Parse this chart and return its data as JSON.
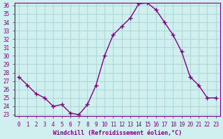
{
  "x": [
    0,
    1,
    2,
    3,
    4,
    5,
    6,
    7,
    8,
    9,
    10,
    11,
    12,
    13,
    14,
    15,
    16,
    17,
    18,
    19,
    20,
    21,
    22,
    23
  ],
  "y": [
    27.5,
    26.5,
    25.5,
    25.0,
    24.0,
    24.2,
    23.2,
    23.0,
    24.2,
    26.5,
    30.0,
    32.5,
    33.5,
    34.5,
    36.2,
    36.3,
    35.5,
    34.0,
    32.5,
    30.5,
    27.5,
    26.5,
    25.0,
    25.0
  ],
  "line_color": "#800080",
  "bg_color": "#d0f0f0",
  "grid_color": "#b0d8d8",
  "axis_color": "#800080",
  "xlabel": "Windchill (Refroidissement éolien,°C)",
  "ylim": [
    23,
    36
  ],
  "xlim_min": -0.5,
  "xlim_max": 23.5,
  "yticks": [
    23,
    24,
    25,
    26,
    27,
    28,
    29,
    30,
    31,
    32,
    33,
    34,
    35,
    36
  ],
  "xticks": [
    0,
    1,
    2,
    3,
    4,
    5,
    6,
    7,
    8,
    9,
    10,
    11,
    12,
    13,
    14,
    15,
    16,
    17,
    18,
    19,
    20,
    21,
    22,
    23
  ],
  "font_color": "#800080"
}
